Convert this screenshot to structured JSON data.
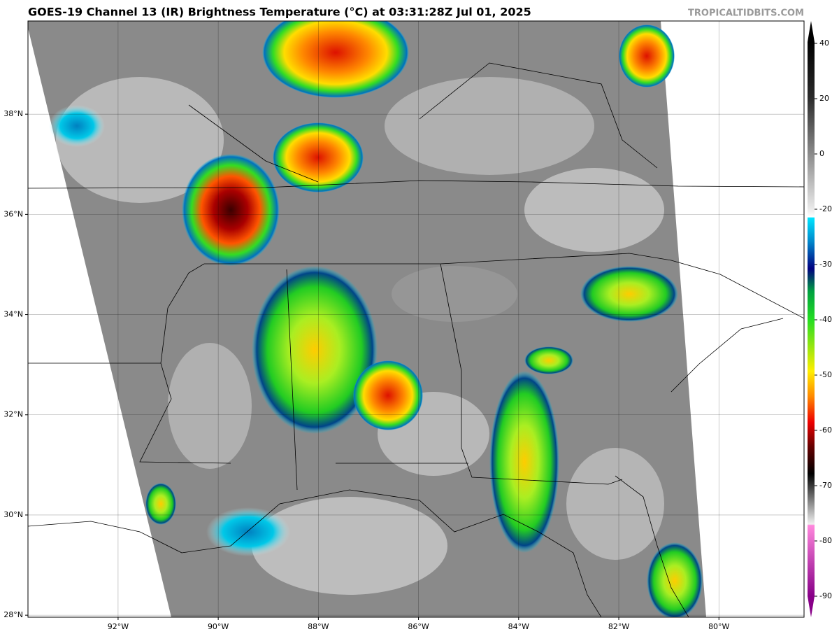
{
  "map": {
    "title": "GOES-19 Channel 13 (IR) Brightness Temperature (°C) at 03:31:28Z Jul 01, 2025",
    "credit": "TROPICALTIDBITS.COM",
    "xlim": [
      -93.8,
      -78.3
    ],
    "ylim": [
      27.96,
      39.86
    ],
    "xticks": [
      {
        "value": -92,
        "label": "92°W"
      },
      {
        "value": -90,
        "label": "90°W"
      },
      {
        "value": -88,
        "label": "88°W"
      },
      {
        "value": -86,
        "label": "86°W"
      },
      {
        "value": -84,
        "label": "84°W"
      },
      {
        "value": -82,
        "label": "82°W"
      },
      {
        "value": -80,
        "label": "80°W"
      }
    ],
    "yticks": [
      {
        "value": 28,
        "label": "28°N"
      },
      {
        "value": 30,
        "label": "30°N"
      },
      {
        "value": 32,
        "label": "32°N"
      },
      {
        "value": 34,
        "label": "34°N"
      },
      {
        "value": 36,
        "label": "36°N"
      },
      {
        "value": 38,
        "label": "38°N"
      }
    ],
    "grid": true,
    "colorbar_ticks": [
      40,
      20,
      0,
      -20,
      -30,
      -40,
      -50,
      -60,
      -70,
      -80,
      -90
    ]
  }
}
